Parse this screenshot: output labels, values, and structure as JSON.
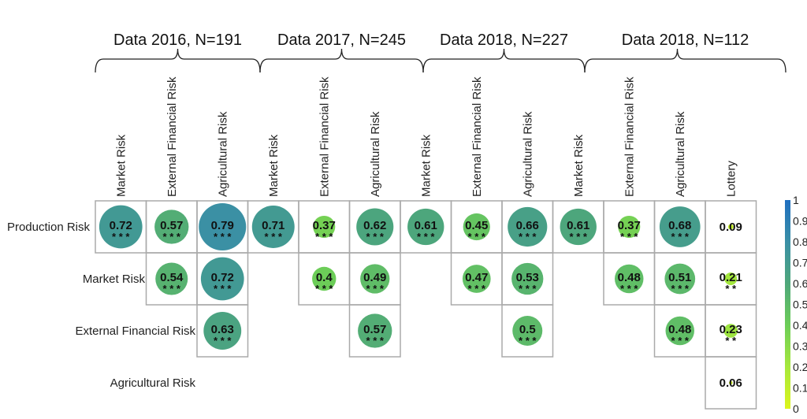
{
  "chart_data": {
    "type": "heatmap",
    "subtype": "correlation circle matrix",
    "row_labels": [
      "Production Risk",
      "Market Risk",
      "External Financial Risk",
      "Agricultural Risk"
    ],
    "groups": [
      {
        "title": "Data 2016, N=191",
        "columns": [
          "Market Risk",
          "External Financial Risk",
          "Agricultural Risk"
        ],
        "cells": [
          {
            "row": 0,
            "col": 0,
            "value": 0.72,
            "sig": "***"
          },
          {
            "row": 0,
            "col": 1,
            "value": 0.57,
            "sig": "***"
          },
          {
            "row": 0,
            "col": 2,
            "value": 0.79,
            "sig": "***"
          },
          {
            "row": 1,
            "col": 1,
            "value": 0.54,
            "sig": "***"
          },
          {
            "row": 1,
            "col": 2,
            "value": 0.72,
            "sig": "***"
          },
          {
            "row": 2,
            "col": 2,
            "value": 0.63,
            "sig": "***"
          }
        ]
      },
      {
        "title": "Data 2017, N=245",
        "columns": [
          "Market Risk",
          "External Financial Risk",
          "Agricultural Risk"
        ],
        "cells": [
          {
            "row": 0,
            "col": 0,
            "value": 0.71,
            "sig": "***"
          },
          {
            "row": 0,
            "col": 1,
            "value": 0.37,
            "sig": "***"
          },
          {
            "row": 0,
            "col": 2,
            "value": 0.62,
            "sig": "***"
          },
          {
            "row": 1,
            "col": 1,
            "value": 0.4,
            "sig": "***"
          },
          {
            "row": 1,
            "col": 2,
            "value": 0.49,
            "sig": "***"
          },
          {
            "row": 2,
            "col": 2,
            "value": 0.57,
            "sig": "***"
          }
        ]
      },
      {
        "title": "Data 2018, N=227",
        "columns": [
          "Market Risk",
          "External Financial Risk",
          "Agricultural Risk"
        ],
        "cells": [
          {
            "row": 0,
            "col": 0,
            "value": 0.61,
            "sig": "***"
          },
          {
            "row": 0,
            "col": 1,
            "value": 0.45,
            "sig": "***"
          },
          {
            "row": 0,
            "col": 2,
            "value": 0.66,
            "sig": "***"
          },
          {
            "row": 1,
            "col": 1,
            "value": 0.47,
            "sig": "***"
          },
          {
            "row": 1,
            "col": 2,
            "value": 0.53,
            "sig": "***"
          },
          {
            "row": 2,
            "col": 2,
            "value": 0.5,
            "sig": "***"
          }
        ]
      },
      {
        "title": "Data 2018, N=112",
        "columns": [
          "Market Risk",
          "External Financial Risk",
          "Agricultural Risk",
          "Lottery"
        ],
        "cells": [
          {
            "row": 0,
            "col": 0,
            "value": 0.61,
            "sig": "***"
          },
          {
            "row": 0,
            "col": 1,
            "value": 0.37,
            "sig": "***"
          },
          {
            "row": 0,
            "col": 2,
            "value": 0.68,
            "sig": "***"
          },
          {
            "row": 0,
            "col": 3,
            "value": 0.09,
            "sig": ""
          },
          {
            "row": 1,
            "col": 1,
            "value": 0.48,
            "sig": "***"
          },
          {
            "row": 1,
            "col": 2,
            "value": 0.51,
            "sig": "***"
          },
          {
            "row": 1,
            "col": 3,
            "value": 0.21,
            "sig": "**"
          },
          {
            "row": 2,
            "col": 2,
            "value": 0.48,
            "sig": "***"
          },
          {
            "row": 2,
            "col": 3,
            "value": 0.23,
            "sig": "**"
          },
          {
            "row": 3,
            "col": 3,
            "value": 0.06,
            "sig": ""
          }
        ]
      }
    ],
    "colorbar": {
      "range": [
        0,
        1
      ],
      "ticks": [
        "0",
        "0.1",
        "0.2",
        "0.3",
        "0.4",
        "0.5",
        "0.6",
        "0.7",
        "0.8",
        "0.9",
        "1"
      ],
      "colors": [
        "#dcf51c",
        "#a6e83c",
        "#6ccd58",
        "#4ea77a",
        "#3a8fa6",
        "#1f6fc0"
      ]
    }
  }
}
